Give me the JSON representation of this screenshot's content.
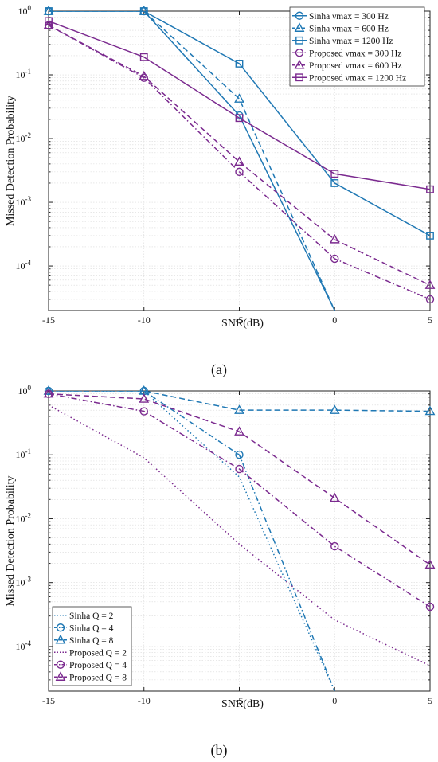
{
  "colors": {
    "sinha": "#1f78b4",
    "proposed": "#7b2a8f"
  },
  "chart_data": [
    {
      "type": "line",
      "panel_label": "(a)",
      "xlabel": "SNR(dB)",
      "ylabel": "Missed Detection Probability",
      "yscale": "log",
      "xlim": [
        -15,
        5
      ],
      "ylim": [
        2e-05,
        1
      ],
      "x_ticks": [
        "-15",
        "-10",
        "-5",
        "0",
        "5"
      ],
      "y_ticks": [
        {
          "value": 1,
          "mant": "10",
          "exp": "0"
        },
        {
          "value": 0.1,
          "mant": "10",
          "exp": "-1"
        },
        {
          "value": 0.01,
          "mant": "10",
          "exp": "-2"
        },
        {
          "value": 0.001,
          "mant": "10",
          "exp": "-3"
        },
        {
          "value": 0.0001,
          "mant": "10",
          "exp": "-4"
        }
      ],
      "grid": true,
      "legend_position": "top-right",
      "series": [
        {
          "label": "Sinha  νmax = 300 Hz",
          "color": "sinha",
          "dash": "solid",
          "marker": "circle",
          "x": [
            -15,
            -10,
            -5,
            0
          ],
          "y": [
            1,
            1,
            0.023,
            2e-05
          ]
        },
        {
          "label": "Sinha  νmax = 600 Hz",
          "color": "sinha",
          "dash": "dashed",
          "marker": "triangle",
          "x": [
            -15,
            -10,
            -5,
            0
          ],
          "y": [
            1,
            1,
            0.042,
            2e-05
          ]
        },
        {
          "label": "Sinha  νmax = 1200 Hz",
          "color": "sinha",
          "dash": "solid",
          "marker": "square",
          "x": [
            -15,
            -10,
            -5,
            0,
            5
          ],
          "y": [
            1,
            1,
            0.15,
            0.002,
            0.0003
          ]
        },
        {
          "label": "Proposed  νmax = 300 Hz",
          "color": "proposed",
          "dash": "dashdot",
          "marker": "circle",
          "x": [
            -15,
            -10,
            -5,
            0,
            5
          ],
          "y": [
            0.6,
            0.09,
            0.003,
            0.00013,
            3e-05
          ]
        },
        {
          "label": "Proposed  νmax = 600 Hz",
          "color": "proposed",
          "dash": "dashed",
          "marker": "triangle",
          "x": [
            -15,
            -10,
            -5,
            0,
            5
          ],
          "y": [
            0.6,
            0.095,
            0.0043,
            0.00026,
            5e-05
          ]
        },
        {
          "label": "Proposed  νmax = 1200 Hz",
          "color": "proposed",
          "dash": "solid",
          "marker": "square",
          "x": [
            -15,
            -10,
            -5,
            0,
            5
          ],
          "y": [
            0.7,
            0.19,
            0.021,
            0.0028,
            0.0016
          ]
        }
      ]
    },
    {
      "type": "line",
      "panel_label": "(b)",
      "xlabel": "SNR(dB)",
      "ylabel": "Missed Detection Probability",
      "yscale": "log",
      "xlim": [
        -15,
        5
      ],
      "ylim": [
        2e-05,
        1
      ],
      "x_ticks": [
        "-15",
        "-10",
        "-5",
        "0",
        "5"
      ],
      "y_ticks": [
        {
          "value": 1,
          "mant": "10",
          "exp": "0"
        },
        {
          "value": 0.1,
          "mant": "10",
          "exp": "-1"
        },
        {
          "value": 0.01,
          "mant": "10",
          "exp": "-2"
        },
        {
          "value": 0.001,
          "mant": "10",
          "exp": "-3"
        },
        {
          "value": 0.0001,
          "mant": "10",
          "exp": "-4"
        }
      ],
      "grid": true,
      "legend_position": "bottom-left",
      "series": [
        {
          "label": "Sinha  Q = 2",
          "color": "sinha",
          "dash": "dotted",
          "marker": "none",
          "x": [
            -15,
            -10,
            -5,
            0
          ],
          "y": [
            1,
            1,
            0.045,
            2e-05
          ]
        },
        {
          "label": "Sinha  Q = 4",
          "color": "sinha",
          "dash": "dashdot",
          "marker": "circle",
          "x": [
            -15,
            -10,
            -5,
            0
          ],
          "y": [
            1,
            1,
            0.1,
            2e-05
          ]
        },
        {
          "label": "Sinha  Q = 8",
          "color": "sinha",
          "dash": "dashed",
          "marker": "triangle",
          "x": [
            -15,
            -10,
            -5,
            0,
            5
          ],
          "y": [
            1,
            1,
            0.5,
            0.5,
            0.48
          ]
        },
        {
          "label": "Proposed  Q = 2",
          "color": "proposed",
          "dash": "dotted",
          "marker": "none",
          "x": [
            -15,
            -10,
            -5,
            0,
            5
          ],
          "y": [
            0.6,
            0.09,
            0.004,
            0.00026,
            5e-05
          ]
        },
        {
          "label": "Proposed  Q = 4",
          "color": "proposed",
          "dash": "dashdot",
          "marker": "circle",
          "x": [
            -15,
            -10,
            -5,
            0,
            5
          ],
          "y": [
            0.9,
            0.48,
            0.06,
            0.0037,
            0.00042
          ]
        },
        {
          "label": "Proposed  Q = 8",
          "color": "proposed",
          "dash": "dashed",
          "marker": "triangle",
          "x": [
            -15,
            -10,
            -5,
            0,
            5
          ],
          "y": [
            0.9,
            0.75,
            0.23,
            0.021,
            0.0019
          ]
        }
      ]
    }
  ]
}
